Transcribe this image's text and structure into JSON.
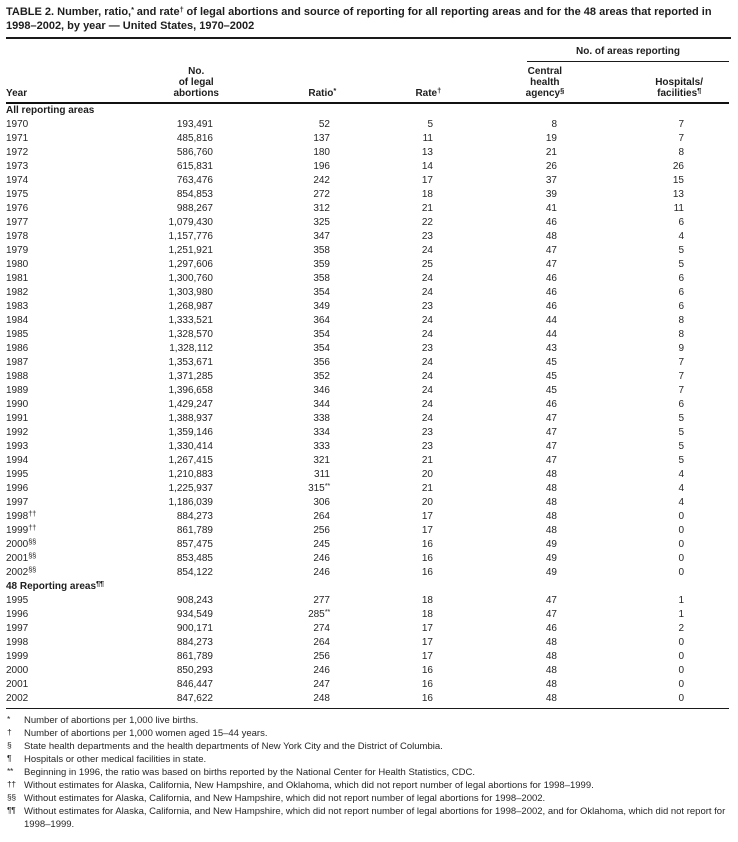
{
  "title": {
    "parts": [
      {
        "text": "TABLE 2. Number, ratio,"
      },
      {
        "sup": "*"
      },
      {
        "text": " and rate"
      },
      {
        "sup": "†"
      },
      {
        "text": " of legal abortions and source of reporting for all reporting areas and for the 48 areas that reported in 1998–2002, by year — United States, 1970–2002"
      }
    ]
  },
  "table": {
    "span_header": "No. of areas reporting",
    "columns": [
      {
        "key": "year",
        "lines": [
          "Year"
        ],
        "sup": ""
      },
      {
        "key": "no-of-legal-abortions",
        "lines": [
          "No.",
          "of legal",
          "abortions"
        ],
        "sup": ""
      },
      {
        "key": "ratio",
        "lines": [
          "Ratio"
        ],
        "sup": "*"
      },
      {
        "key": "rate",
        "lines": [
          "Rate"
        ],
        "sup": "†"
      },
      {
        "key": "central-health-agency",
        "lines": [
          "Central",
          "health",
          "agency"
        ],
        "sup": "§"
      },
      {
        "key": "hospitals-facilities",
        "lines": [
          "Hospitals/",
          "facilities"
        ],
        "sup": "¶"
      }
    ],
    "sections": [
      {
        "label": "All reporting areas",
        "label_sup": "",
        "rows": [
          {
            "year": "1970",
            "abortions": "193,491",
            "ratio": "52",
            "rate": "5",
            "central": "8",
            "hospitals": "7"
          },
          {
            "year": "1971",
            "abortions": "485,816",
            "ratio": "137",
            "rate": "11",
            "central": "19",
            "hospitals": "7"
          },
          {
            "year": "1972",
            "abortions": "586,760",
            "ratio": "180",
            "rate": "13",
            "central": "21",
            "hospitals": "8"
          },
          {
            "year": "1973",
            "abortions": "615,831",
            "ratio": "196",
            "rate": "14",
            "central": "26",
            "hospitals": "26"
          },
          {
            "year": "1974",
            "abortions": "763,476",
            "ratio": "242",
            "rate": "17",
            "central": "37",
            "hospitals": "15"
          },
          {
            "year": "1975",
            "abortions": "854,853",
            "ratio": "272",
            "rate": "18",
            "central": "39",
            "hospitals": "13"
          },
          {
            "year": "1976",
            "abortions": "988,267",
            "ratio": "312",
            "rate": "21",
            "central": "41",
            "hospitals": "11"
          },
          {
            "year": "1977",
            "abortions": "1,079,430",
            "ratio": "325",
            "rate": "22",
            "central": "46",
            "hospitals": "6"
          },
          {
            "year": "1978",
            "abortions": "1,157,776",
            "ratio": "347",
            "rate": "23",
            "central": "48",
            "hospitals": "4"
          },
          {
            "year": "1979",
            "abortions": "1,251,921",
            "ratio": "358",
            "rate": "24",
            "central": "47",
            "hospitals": "5"
          },
          {
            "year": "1980",
            "abortions": "1,297,606",
            "ratio": "359",
            "rate": "25",
            "central": "47",
            "hospitals": "5"
          },
          {
            "year": "1981",
            "abortions": "1,300,760",
            "ratio": "358",
            "rate": "24",
            "central": "46",
            "hospitals": "6"
          },
          {
            "year": "1982",
            "abortions": "1,303,980",
            "ratio": "354",
            "rate": "24",
            "central": "46",
            "hospitals": "6"
          },
          {
            "year": "1983",
            "abortions": "1,268,987",
            "ratio": "349",
            "rate": "23",
            "central": "46",
            "hospitals": "6"
          },
          {
            "year": "1984",
            "abortions": "1,333,521",
            "ratio": "364",
            "rate": "24",
            "central": "44",
            "hospitals": "8"
          },
          {
            "year": "1985",
            "abortions": "1,328,570",
            "ratio": "354",
            "rate": "24",
            "central": "44",
            "hospitals": "8"
          },
          {
            "year": "1986",
            "abortions": "1,328,112",
            "ratio": "354",
            "rate": "23",
            "central": "43",
            "hospitals": "9"
          },
          {
            "year": "1987",
            "abortions": "1,353,671",
            "ratio": "356",
            "rate": "24",
            "central": "45",
            "hospitals": "7"
          },
          {
            "year": "1988",
            "abortions": "1,371,285",
            "ratio": "352",
            "rate": "24",
            "central": "45",
            "hospitals": "7"
          },
          {
            "year": "1989",
            "abortions": "1,396,658",
            "ratio": "346",
            "rate": "24",
            "central": "45",
            "hospitals": "7"
          },
          {
            "year": "1990",
            "abortions": "1,429,247",
            "ratio": "344",
            "rate": "24",
            "central": "46",
            "hospitals": "6"
          },
          {
            "year": "1991",
            "abortions": "1,388,937",
            "ratio": "338",
            "rate": "24",
            "central": "47",
            "hospitals": "5"
          },
          {
            "year": "1992",
            "abortions": "1,359,146",
            "ratio": "334",
            "rate": "23",
            "central": "47",
            "hospitals": "5"
          },
          {
            "year": "1993",
            "abortions": "1,330,414",
            "ratio": "333",
            "rate": "23",
            "central": "47",
            "hospitals": "5"
          },
          {
            "year": "1994",
            "abortions": "1,267,415",
            "ratio": "321",
            "rate": "21",
            "central": "47",
            "hospitals": "5"
          },
          {
            "year": "1995",
            "abortions": "1,210,883",
            "ratio": "311",
            "rate": "20",
            "central": "48",
            "hospitals": "4"
          },
          {
            "year": "1996",
            "abortions": "1,225,937",
            "ratio": "315",
            "ratio_sup": "**",
            "rate": "21",
            "central": "48",
            "hospitals": "4"
          },
          {
            "year": "1997",
            "abortions": "1,186,039",
            "ratio": "306",
            "rate": "20",
            "central": "48",
            "hospitals": "4"
          },
          {
            "year": "1998",
            "year_sup": "††",
            "abortions": "884,273",
            "ratio": "264",
            "rate": "17",
            "central": "48",
            "hospitals": "0"
          },
          {
            "year": "1999",
            "year_sup": "††",
            "abortions": "861,789",
            "ratio": "256",
            "rate": "17",
            "central": "48",
            "hospitals": "0"
          },
          {
            "year": "2000",
            "year_sup": "§§",
            "abortions": "857,475",
            "ratio": "245",
            "rate": "16",
            "central": "49",
            "hospitals": "0"
          },
          {
            "year": "2001",
            "year_sup": "§§",
            "abortions": "853,485",
            "ratio": "246",
            "rate": "16",
            "central": "49",
            "hospitals": "0"
          },
          {
            "year": "2002",
            "year_sup": "§§",
            "abortions": "854,122",
            "ratio": "246",
            "rate": "16",
            "central": "49",
            "hospitals": "0"
          }
        ]
      },
      {
        "label": "48 Reporting areas",
        "label_sup": "¶¶",
        "rows": [
          {
            "year": "1995",
            "abortions": "908,243",
            "ratio": "277",
            "rate": "18",
            "central": "47",
            "hospitals": "1"
          },
          {
            "year": "1996",
            "abortions": "934,549",
            "ratio": "285",
            "ratio_sup": "**",
            "rate": "18",
            "central": "47",
            "hospitals": "1"
          },
          {
            "year": "1997",
            "abortions": "900,171",
            "ratio": "274",
            "rate": "17",
            "central": "46",
            "hospitals": "2"
          },
          {
            "year": "1998",
            "abortions": "884,273",
            "ratio": "264",
            "rate": "17",
            "central": "48",
            "hospitals": "0"
          },
          {
            "year": "1999",
            "abortions": "861,789",
            "ratio": "256",
            "rate": "17",
            "central": "48",
            "hospitals": "0"
          },
          {
            "year": "2000",
            "abortions": "850,293",
            "ratio": "246",
            "rate": "16",
            "central": "48",
            "hospitals": "0"
          },
          {
            "year": "2001",
            "abortions": "846,447",
            "ratio": "247",
            "rate": "16",
            "central": "48",
            "hospitals": "0"
          },
          {
            "year": "2002",
            "abortions": "847,622",
            "ratio": "248",
            "rate": "16",
            "central": "48",
            "hospitals": "0"
          }
        ]
      }
    ]
  },
  "footnotes": [
    {
      "marker": "*",
      "text": "Number of abortions per 1,000 live births."
    },
    {
      "marker": "†",
      "text": "Number of abortions per 1,000 women aged 15–44 years."
    },
    {
      "marker": "§",
      "text": "State health departments and the health departments of New York City and the District of Columbia."
    },
    {
      "marker": "¶",
      "text": "Hospitals or other medical facilities in state."
    },
    {
      "marker": "**",
      "text": "Beginning in 1996, the ratio was based on births reported by the National Center for Health Statistics, CDC."
    },
    {
      "marker": "††",
      "text": "Without estimates for Alaska, California, New Hampshire, and Oklahoma, which did not report number of legal abortions for 1998–1999."
    },
    {
      "marker": "§§",
      "text": "Without estimates for Alaska, California, and New Hampshire, which did not report number of legal abortions for 1998–2002."
    },
    {
      "marker": "¶¶",
      "text": "Without estimates for Alaska, California, and New Hampshire, which did not report number of legal abortions for 1998–2002, and for Oklahoma, which did not report for 1998–1999."
    }
  ]
}
